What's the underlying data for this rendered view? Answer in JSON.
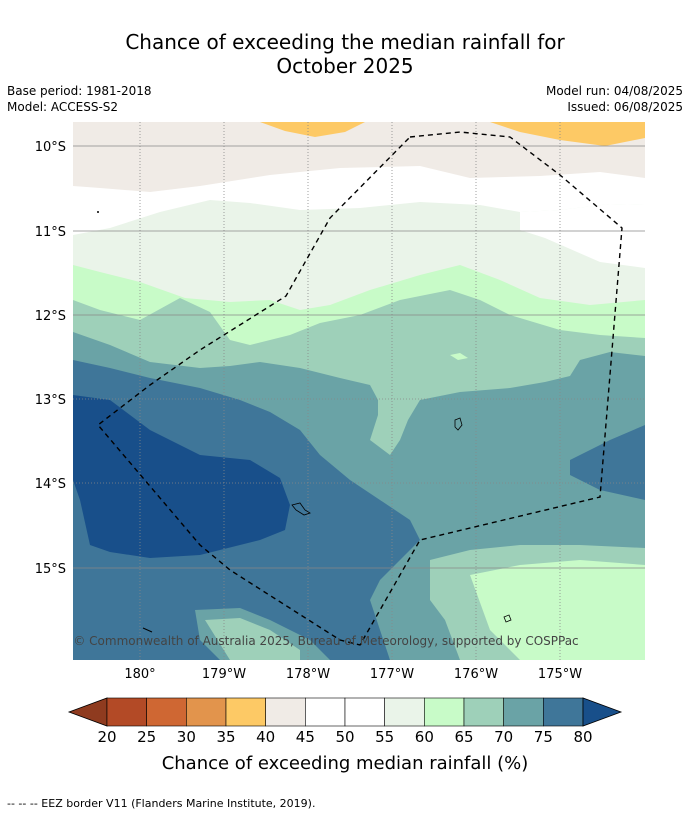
{
  "title_line1": "Chance of exceeding the median rainfall for",
  "title_line2": "October 2025",
  "meta_left": [
    "Base period: 1981-2018",
    "Model: ACCESS-S2"
  ],
  "meta_right": [
    "Model run: 04/08/2025",
    "Issued: 06/08/2025"
  ],
  "lon_labels": [
    "180°",
    "179°W",
    "178°W",
    "177°W",
    "176°W",
    "175°W"
  ],
  "lat_labels": [
    "10°S",
    "11°S",
    "12°S",
    "13°S",
    "14°S",
    "15°S"
  ],
  "copyright": "© Commonwealth of Australia 2025, Bureau of Meteorology, supported by COSPPac",
  "colorbar": {
    "ticks": [
      "20",
      "25",
      "30",
      "35",
      "40",
      "45",
      "50",
      "55",
      "60",
      "65",
      "70",
      "75",
      "80"
    ],
    "colors": [
      "#8f3b1f",
      "#b34a26",
      "#cf6733",
      "#e2944c",
      "#fdc965",
      "#f0ebe6",
      "#ffffff",
      "#ffffff",
      "#eaf4e9",
      "#c8fbc8",
      "#9ed0b9",
      "#6aa3a6",
      "#3f7699",
      "#184f8a"
    ],
    "label": "Chance of exceeding median rainfall (%)"
  },
  "footer": "--  --  -- EEZ border V11 (Flanders Marine Institute, 2019)."
}
